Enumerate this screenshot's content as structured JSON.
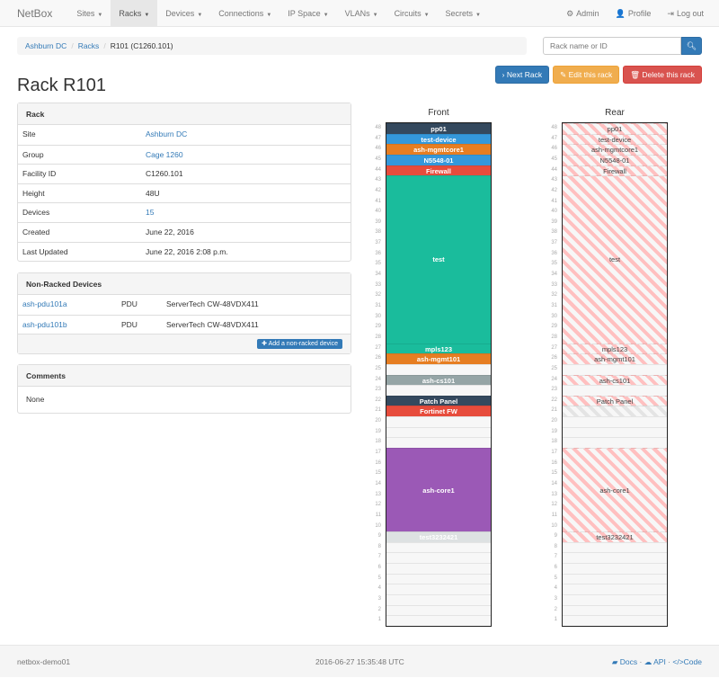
{
  "nav": {
    "brand": "NetBox",
    "items": [
      {
        "label": "Sites"
      },
      {
        "label": "Racks",
        "active": true
      },
      {
        "label": "Devices"
      },
      {
        "label": "Connections"
      },
      {
        "label": "IP Space"
      },
      {
        "label": "VLANs"
      },
      {
        "label": "Circuits"
      },
      {
        "label": "Secrets"
      }
    ],
    "right": [
      {
        "icon": "gear-icon",
        "glyph": "⚙",
        "label": "Admin"
      },
      {
        "icon": "user-icon",
        "glyph": "👤",
        "label": "Profile"
      },
      {
        "icon": "logout-icon",
        "glyph": "⇥",
        "label": "Log out"
      }
    ]
  },
  "breadcrumb": [
    "Ashburn DC",
    "Racks",
    "R101 (C1260.101)"
  ],
  "search": {
    "placeholder": "Rack name or ID"
  },
  "buttons": {
    "next": "Next Rack",
    "edit": "Edit this rack",
    "delete": "Delete this rack"
  },
  "title": "Rack R101",
  "rack_panel": {
    "heading": "Rack",
    "rows": [
      {
        "k": "Site",
        "v": "Ashburn DC",
        "link": true
      },
      {
        "k": "Group",
        "v": "Cage 1260",
        "link": true
      },
      {
        "k": "Facility ID",
        "v": "C1260.101"
      },
      {
        "k": "Height",
        "v": "48U"
      },
      {
        "k": "Devices",
        "v": "15",
        "link": true
      },
      {
        "k": "Created",
        "v": "June 22, 2016"
      },
      {
        "k": "Last Updated",
        "v": "June 22, 2016 2:08 p.m."
      }
    ]
  },
  "nonracked": {
    "heading": "Non-Racked Devices",
    "rows": [
      {
        "name": "ash-pdu101a",
        "role": "PDU",
        "type": "ServerTech CW-48VDX411"
      },
      {
        "name": "ash-pdu101b",
        "role": "PDU",
        "type": "ServerTech CW-48VDX411"
      }
    ],
    "add_label": "Add a non-racked device"
  },
  "comments": {
    "heading": "Comments",
    "text": "None"
  },
  "rack": {
    "front_label": "Front",
    "rear_label": "Rear",
    "units": 48,
    "devices": [
      {
        "name": "pp01",
        "position": 48,
        "height": 1,
        "color": "#34495e"
      },
      {
        "name": "test-device",
        "position": 47,
        "height": 1,
        "color": "#3498db"
      },
      {
        "name": "ash-mgmtcore1",
        "position": 46,
        "height": 1,
        "color": "#e67e22"
      },
      {
        "name": "N5548-01",
        "position": 45,
        "height": 1,
        "color": "#3498db"
      },
      {
        "name": "Firewall",
        "position": 44,
        "height": 1,
        "color": "#e74c3c"
      },
      {
        "name": "test",
        "position": 28,
        "height": 16,
        "color": "#1abc9c"
      },
      {
        "name": "mpls123",
        "position": 27,
        "height": 1,
        "color": "#1abc9c"
      },
      {
        "name": "ash-mgmt101",
        "position": 26,
        "height": 1,
        "color": "#e67e22"
      },
      {
        "name": "ash-cs101",
        "position": 24,
        "height": 1,
        "color": "#95a5a6"
      },
      {
        "name": "Patch Panel",
        "position": 22,
        "height": 1,
        "color": "#34495e"
      },
      {
        "name": "Fortinet FW",
        "position": 21,
        "height": 1,
        "color": "#e74c3c",
        "rear": "occupied"
      },
      {
        "name": "ash-core1",
        "position": 10,
        "height": 8,
        "color": "#9b59b6"
      },
      {
        "name": "test3232421",
        "position": 9,
        "height": 1,
        "color": "#dde1e2"
      }
    ]
  },
  "footer": {
    "host": "netbox-demo01",
    "time": "2016-06-27 15:35:48 UTC",
    "docs": "Docs",
    "api": "API",
    "code": "Code"
  }
}
